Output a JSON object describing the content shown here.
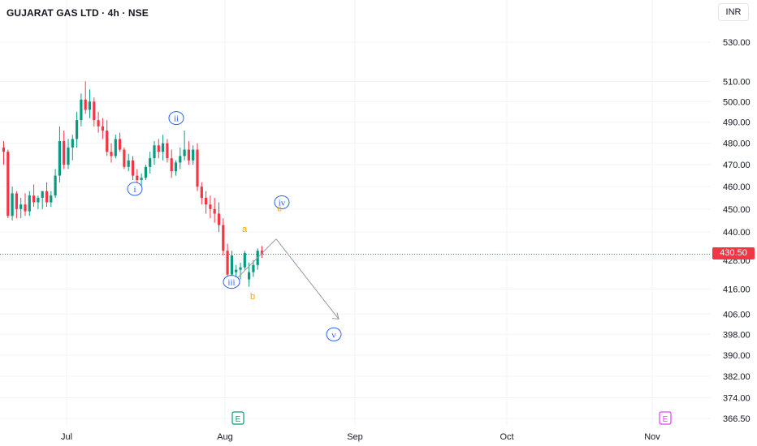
{
  "header": {
    "title": "GUJARAT GAS LTD · 4h · NSE",
    "currency": "INR"
  },
  "colors": {
    "up": "#089981",
    "down": "#f23645",
    "wave_label": "#2962ff",
    "abc_label": "#f7a600",
    "grid": "#f0f3fa",
    "projection": "#9598a1",
    "earnings_past": "#089981",
    "earnings_future": "#e040fb"
  },
  "chart_data": {
    "type": "candlestick",
    "timeframe": "4h",
    "y_scale": "log",
    "y_ticks": [
      530.0,
      510.0,
      500.0,
      490.0,
      480.0,
      470.0,
      460.0,
      450.0,
      440.0,
      428.0,
      416.0,
      406.0,
      398.0,
      390.0,
      382.0,
      374.0,
      366.5
    ],
    "y_tick_labels": [
      "530.00",
      "510.00",
      "500.00",
      "490.00",
      "480.00",
      "470.00",
      "460.00",
      "450.00",
      "440.00",
      "428.00",
      "416.00",
      "406.00",
      "398.00",
      "390.00",
      "382.00",
      "374.00",
      "366.50"
    ],
    "x_labels": [
      "Jul",
      "Aug",
      "Sep",
      "Oct",
      "Nov"
    ],
    "last_price": 430.5,
    "last_price_label": "430.50",
    "candles": [
      [
        478,
        481,
        470,
        476
      ],
      [
        476,
        477,
        446,
        447
      ],
      [
        447,
        460,
        445,
        457
      ],
      [
        457,
        458,
        446,
        450
      ],
      [
        450,
        455,
        446,
        452
      ],
      [
        452,
        457,
        447,
        449
      ],
      [
        449,
        458,
        447,
        456
      ],
      [
        456,
        461,
        451,
        453
      ],
      [
        453,
        456,
        450,
        455
      ],
      [
        455,
        458,
        450,
        458
      ],
      [
        458,
        462,
        451,
        453
      ],
      [
        453,
        458,
        451,
        456
      ],
      [
        456,
        468,
        455,
        465
      ],
      [
        465,
        488,
        462,
        481
      ],
      [
        481,
        486,
        468,
        470
      ],
      [
        470,
        482,
        468,
        478
      ],
      [
        478,
        484,
        472,
        482
      ],
      [
        482,
        495,
        478,
        491
      ],
      [
        491,
        504,
        488,
        501
      ],
      [
        501,
        510,
        494,
        496
      ],
      [
        496,
        506,
        492,
        500
      ],
      [
        500,
        502,
        488,
        491
      ],
      [
        491,
        495,
        485,
        488
      ],
      [
        488,
        492,
        482,
        486
      ],
      [
        486,
        491,
        474,
        476
      ],
      [
        476,
        480,
        471,
        474
      ],
      [
        474,
        484,
        473,
        482
      ],
      [
        482,
        485,
        476,
        477
      ],
      [
        477,
        478,
        468,
        469
      ],
      [
        469,
        475,
        467,
        472
      ],
      [
        472,
        474,
        463,
        465
      ],
      [
        465,
        468,
        461,
        463
      ],
      [
        463,
        466,
        460,
        464
      ],
      [
        464,
        470,
        463,
        469
      ],
      [
        469,
        476,
        466,
        473
      ],
      [
        473,
        481,
        470,
        479
      ],
      [
        479,
        482,
        473,
        476
      ],
      [
        476,
        484,
        472,
        480
      ],
      [
        480,
        482,
        471,
        473
      ],
      [
        473,
        477,
        464,
        467
      ],
      [
        467,
        472,
        465,
        471
      ],
      [
        471,
        478,
        468,
        474
      ],
      [
        474,
        486,
        472,
        477
      ],
      [
        477,
        481,
        470,
        472
      ],
      [
        472,
        479,
        470,
        477
      ],
      [
        477,
        480,
        458,
        460
      ],
      [
        460,
        462,
        452,
        455
      ],
      [
        455,
        458,
        448,
        452
      ],
      [
        452,
        456,
        446,
        450
      ],
      [
        450,
        455,
        444,
        448
      ],
      [
        448,
        453,
        440,
        443
      ],
      [
        443,
        446,
        430,
        432
      ],
      [
        432,
        435,
        420,
        422
      ],
      [
        422,
        432,
        419,
        430
      ],
      [
        423,
        426,
        419,
        424
      ],
      [
        424,
        427,
        420,
        425
      ],
      [
        425,
        432,
        424,
        431
      ],
      [
        420,
        427,
        417,
        423
      ],
      [
        423,
        428,
        421,
        426
      ],
      [
        426,
        433,
        424,
        432
      ],
      [
        432,
        434,
        429,
        430.5
      ]
    ],
    "wave_labels": [
      "i",
      "ii",
      "iii",
      "iv",
      "v"
    ],
    "abc_labels": [
      "a",
      "b",
      "c"
    ],
    "earnings_marker": "E"
  }
}
